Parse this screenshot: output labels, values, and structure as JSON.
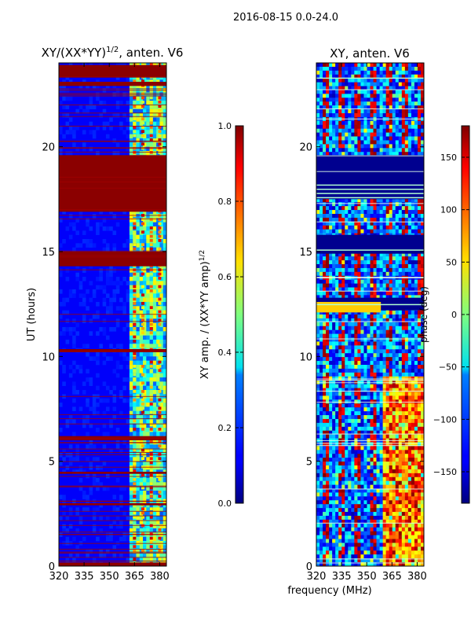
{
  "figure": {
    "suptitle": "2016-08-15 0.0-24.0",
    "xlabel": "frequency (MHz)"
  },
  "chart_data": [
    {
      "type": "heatmap",
      "title_main": "XY/(XX*YY)",
      "title_sup": "1/2",
      "title_rest": ", anten. V6",
      "ylabel": "UT (hours)",
      "xlim": [
        320,
        384
      ],
      "ylim": [
        0,
        24
      ],
      "xticks": [
        320,
        335,
        350,
        365,
        380
      ],
      "yticks": [
        0,
        5,
        10,
        15,
        20
      ],
      "colorbar": {
        "label_main": "XY amp. / (XX*YY amp)",
        "label_sup": "1/2",
        "range": [
          0.0,
          1.0
        ],
        "ticks": [
          "0.0",
          "0.2",
          "0.4",
          "0.6",
          "0.8",
          "1.0"
        ],
        "tick_values": [
          0.0,
          0.2,
          0.4,
          0.6,
          0.8,
          1.0
        ]
      },
      "base_value": 0.12,
      "dark_red_bands_ut": [
        [
          17.4,
          19.6
        ],
        [
          16.9,
          17.4
        ],
        [
          14.3,
          15.0
        ],
        [
          10.2,
          10.35
        ],
        [
          6.0,
          6.2
        ],
        [
          4.4,
          4.5
        ],
        [
          2.9,
          3.0
        ],
        [
          23.3,
          23.9
        ],
        [
          22.9,
          23.1
        ],
        [
          0.0,
          0.15
        ]
      ],
      "hot_channels_mhz": [
        365,
        370,
        375,
        380
      ]
    },
    {
      "type": "heatmap",
      "title_main": "XY, anten. V6",
      "xlim": [
        320,
        384
      ],
      "ylim": [
        0,
        24
      ],
      "xticks": [
        320,
        335,
        350,
        365,
        380
      ],
      "yticks": [
        0,
        5,
        10,
        15,
        20
      ],
      "colorbar": {
        "label_main": "phase (deg)",
        "range": [
          -180,
          180
        ],
        "ticks": [
          "150",
          "100",
          "50",
          "0",
          "−50",
          "−100",
          "−150"
        ],
        "tick_values": [
          150,
          100,
          50,
          0,
          -50,
          -100,
          -150
        ]
      },
      "dark_blue_bands_ut": [
        [
          17.5,
          19.6
        ],
        [
          14.9,
          15.8
        ],
        [
          12.2,
          12.8
        ]
      ],
      "cyan_lines_ut": [
        17.8,
        18.0,
        18.2,
        17.6,
        12.5,
        15.1,
        23.3
      ]
    }
  ]
}
